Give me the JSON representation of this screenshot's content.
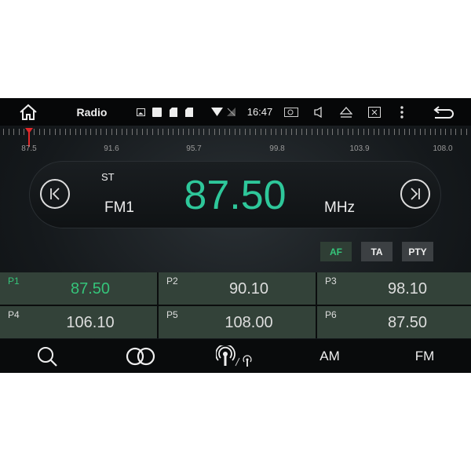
{
  "topbar": {
    "title": "Radio",
    "time": "16:47",
    "icons": [
      "home-icon",
      "gallery-icon",
      "square-icon",
      "sd-card-icon",
      "sd-card-icon",
      "wifi-icon",
      "no-signal-icon",
      "screenshot-icon",
      "volume-icon",
      "eject-icon",
      "close-window-icon",
      "more-icon",
      "back-icon"
    ]
  },
  "scale": {
    "labels": [
      "87.5",
      "91.6",
      "95.7",
      "99.8",
      "103.9",
      "108.0"
    ],
    "min": 87.5,
    "max": 108.0,
    "current": 87.5,
    "needle_color": "#e0282a"
  },
  "display": {
    "stereo": "ST",
    "band": "FM1",
    "frequency": "87.50",
    "unit": "MHz",
    "freq_color": "#2ec79a"
  },
  "rds": [
    {
      "label": "AF",
      "active": true
    },
    {
      "label": "TA",
      "active": false
    },
    {
      "label": "PTY",
      "active": false
    }
  ],
  "presets": [
    {
      "label": "P1",
      "freq": "87.50",
      "active": true
    },
    {
      "label": "P2",
      "freq": "90.10"
    },
    {
      "label": "P3",
      "freq": "98.10"
    },
    {
      "label": "P4",
      "freq": "106.10"
    },
    {
      "label": "P5",
      "freq": "108.00"
    },
    {
      "label": "P6",
      "freq": "87.50"
    }
  ],
  "bottombar": {
    "am": "AM",
    "fm": "FM",
    "icons": [
      "search-icon",
      "stereo-icon",
      "local-distance-icon"
    ]
  }
}
